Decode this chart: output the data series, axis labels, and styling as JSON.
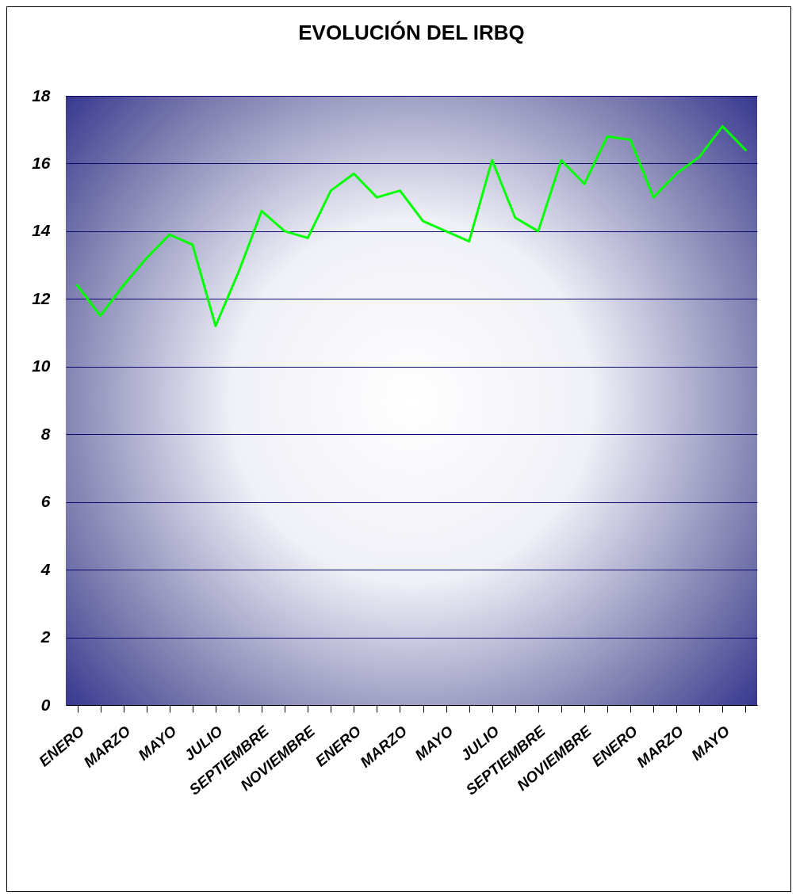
{
  "chart_data": {
    "type": "line",
    "title": "EVOLUCIÓN DEL IRBQ",
    "categories": [
      "ENERO",
      null,
      "MARZO",
      null,
      "MAYO",
      null,
      "JULIO",
      null,
      "SEPTIEMBRE",
      null,
      "NOVIEMBRE",
      null,
      "ENERO",
      null,
      "MARZO",
      null,
      "MAYO",
      null,
      "JULIO",
      null,
      "SEPTIEMBRE",
      null,
      "NOVIEMBRE",
      null,
      "ENERO",
      null,
      "MARZO",
      null,
      "MAYO",
      null
    ],
    "series": [
      {
        "color": "#00ff00",
        "values": [
          12.4,
          11.5,
          12.4,
          13.2,
          13.9,
          13.6,
          11.2,
          12.8,
          14.6,
          14.0,
          13.8,
          15.2,
          15.7,
          15.0,
          15.2,
          14.3,
          14.0,
          13.7,
          16.1,
          14.4,
          14.0,
          16.1,
          15.4,
          16.8,
          16.7,
          15.0,
          15.7,
          16.2,
          17.1,
          16.4
        ]
      }
    ],
    "ylim": [
      0,
      18
    ],
    "yticks": [
      0,
      2,
      4,
      6,
      8,
      10,
      12,
      14,
      16,
      18
    ],
    "grid": "y",
    "marker": "none",
    "line_style": "solid",
    "legend": false
  }
}
